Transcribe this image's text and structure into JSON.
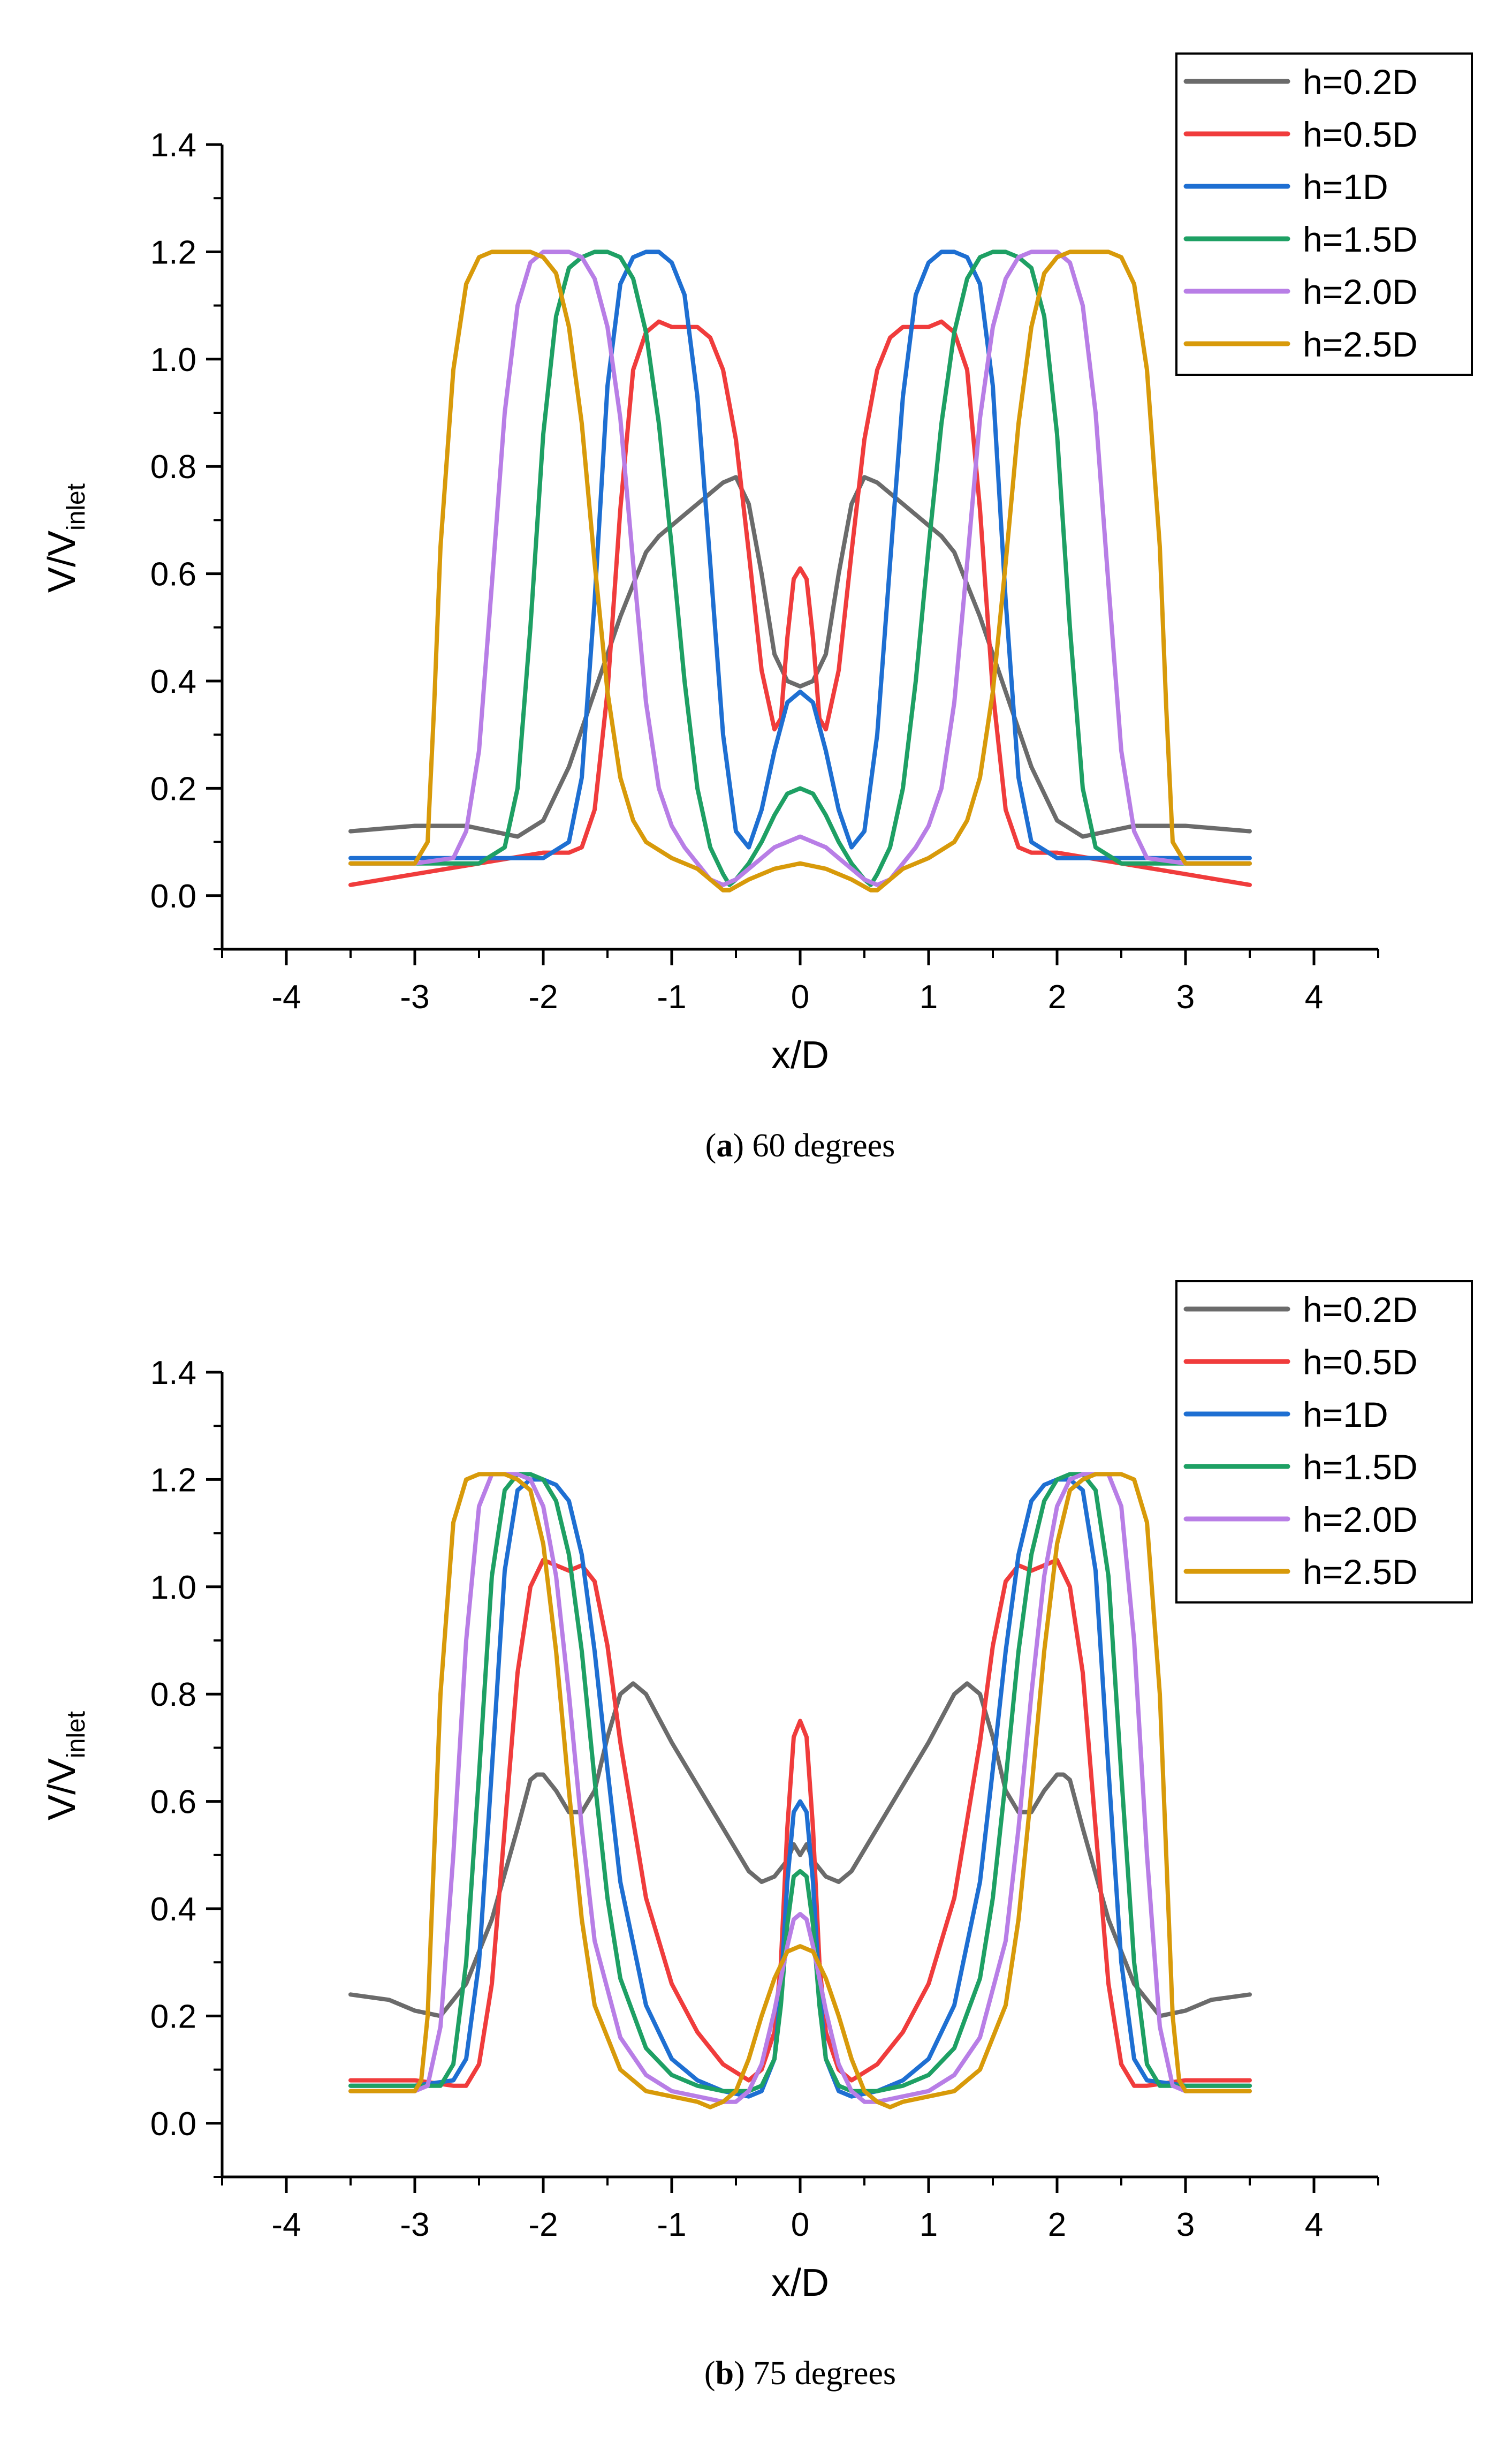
{
  "figure": {
    "series_colors": {
      "h=0.2D": "#6b6b6b",
      "h=0.5D": "#f03c3c",
      "h=1D": "#1e6fd2",
      "h=1.5D": "#1ea064",
      "h=2.0D": "#b87ee6",
      "h=2.5D": "#d89a0a"
    }
  },
  "chart_data": [
    {
      "type": "line",
      "panel_letter": "a",
      "caption": "60 degrees",
      "xlabel": "x/D",
      "ylabel_main": "V/V",
      "ylabel_sub": "inlet",
      "xlim": [
        -4.5,
        4.5
      ],
      "ylim": [
        -0.1,
        1.4
      ],
      "xticks": [
        -4,
        -3,
        -2,
        -1,
        0,
        1,
        2,
        3,
        4
      ],
      "yticks": [
        0.0,
        0.2,
        0.4,
        0.6,
        0.8,
        1.0,
        1.2,
        1.4
      ],
      "yticklabels": [
        "0.0",
        "0.2",
        "0.4",
        "0.6",
        "0.8",
        "1.0",
        "1.2",
        "1.4"
      ],
      "legend": "top-right",
      "series": [
        {
          "name": "h=0.2D",
          "color": "#6b6b6b",
          "x": [
            0,
            0.1,
            0.2,
            0.3,
            0.4,
            0.5,
            0.6,
            0.8,
            1.0,
            1.1,
            1.2,
            1.4,
            1.6,
            1.8,
            2.0,
            2.2,
            2.4,
            2.6,
            3.0,
            3.5
          ],
          "y": [
            0.39,
            0.4,
            0.45,
            0.6,
            0.73,
            0.78,
            0.77,
            0.73,
            0.69,
            0.67,
            0.64,
            0.52,
            0.38,
            0.24,
            0.14,
            0.11,
            0.12,
            0.13,
            0.13,
            0.12
          ]
        },
        {
          "name": "h=0.5D",
          "color": "#f03c3c",
          "x": [
            0,
            0.05,
            0.1,
            0.15,
            0.2,
            0.3,
            0.4,
            0.5,
            0.6,
            0.7,
            0.8,
            0.9,
            1.0,
            1.1,
            1.2,
            1.3,
            1.4,
            1.5,
            1.6,
            1.7,
            1.8,
            2.0,
            2.5,
            3.0,
            3.5
          ],
          "y": [
            0.61,
            0.59,
            0.48,
            0.33,
            0.31,
            0.42,
            0.64,
            0.85,
            0.98,
            1.04,
            1.06,
            1.06,
            1.06,
            1.07,
            1.05,
            0.98,
            0.72,
            0.38,
            0.16,
            0.09,
            0.08,
            0.08,
            0.06,
            0.04,
            0.02
          ]
        },
        {
          "name": "h=1D",
          "color": "#1e6fd2",
          "x": [
            0,
            0.1,
            0.2,
            0.3,
            0.4,
            0.5,
            0.6,
            0.7,
            0.8,
            0.9,
            1.0,
            1.1,
            1.2,
            1.3,
            1.4,
            1.5,
            1.6,
            1.7,
            1.8,
            2.0,
            2.5,
            3.0,
            3.5
          ],
          "y": [
            0.38,
            0.36,
            0.27,
            0.16,
            0.09,
            0.12,
            0.3,
            0.62,
            0.93,
            1.12,
            1.18,
            1.2,
            1.2,
            1.19,
            1.14,
            0.95,
            0.55,
            0.22,
            0.1,
            0.07,
            0.07,
            0.07,
            0.07
          ]
        },
        {
          "name": "h=1.5D",
          "color": "#1ea064",
          "x": [
            0,
            0.1,
            0.2,
            0.3,
            0.4,
            0.5,
            0.55,
            0.6,
            0.7,
            0.8,
            0.9,
            1.0,
            1.1,
            1.2,
            1.3,
            1.4,
            1.5,
            1.6,
            1.7,
            1.8,
            1.9,
            2.0,
            2.1,
            2.2,
            2.3,
            2.5,
            3.0,
            3.5
          ],
          "y": [
            0.2,
            0.19,
            0.15,
            0.1,
            0.06,
            0.03,
            0.02,
            0.04,
            0.09,
            0.2,
            0.4,
            0.65,
            0.88,
            1.05,
            1.15,
            1.19,
            1.2,
            1.2,
            1.19,
            1.17,
            1.08,
            0.86,
            0.5,
            0.2,
            0.09,
            0.06,
            0.06,
            0.06
          ]
        },
        {
          "name": "h=2.0D",
          "color": "#b87ee6",
          "x": [
            0,
            0.1,
            0.2,
            0.3,
            0.4,
            0.5,
            0.6,
            0.7,
            0.8,
            0.9,
            1.0,
            1.1,
            1.2,
            1.3,
            1.4,
            1.5,
            1.6,
            1.7,
            1.8,
            1.9,
            2.0,
            2.1,
            2.2,
            2.3,
            2.4,
            2.5,
            2.6,
            2.7,
            3.0,
            3.5
          ],
          "y": [
            0.11,
            0.1,
            0.09,
            0.07,
            0.05,
            0.03,
            0.02,
            0.03,
            0.06,
            0.09,
            0.13,
            0.2,
            0.36,
            0.62,
            0.89,
            1.06,
            1.15,
            1.19,
            1.2,
            1.2,
            1.2,
            1.18,
            1.1,
            0.9,
            0.58,
            0.27,
            0.12,
            0.07,
            0.06,
            0.06
          ]
        },
        {
          "name": "h=2.5D",
          "color": "#d89a0a",
          "x": [
            0,
            0.2,
            0.4,
            0.55,
            0.6,
            0.7,
            0.8,
            1.0,
            1.2,
            1.3,
            1.4,
            1.5,
            1.6,
            1.7,
            1.8,
            1.9,
            2.0,
            2.1,
            2.2,
            2.3,
            2.4,
            2.5,
            2.6,
            2.7,
            2.8,
            2.85,
            2.9,
            3.0,
            3.5
          ],
          "y": [
            0.06,
            0.05,
            0.03,
            0.01,
            0.01,
            0.03,
            0.05,
            0.07,
            0.1,
            0.14,
            0.22,
            0.38,
            0.62,
            0.88,
            1.06,
            1.16,
            1.19,
            1.2,
            1.2,
            1.2,
            1.2,
            1.19,
            1.14,
            0.98,
            0.65,
            0.35,
            0.1,
            0.06,
            0.06
          ]
        }
      ]
    },
    {
      "type": "line",
      "panel_letter": "b",
      "caption": "75 degrees",
      "xlabel": "x/D",
      "ylabel_main": "V/V",
      "ylabel_sub": "inlet",
      "xlim": [
        -4.5,
        4.5
      ],
      "ylim": [
        -0.1,
        1.4
      ],
      "xticks": [
        -4,
        -3,
        -2,
        -1,
        0,
        1,
        2,
        3,
        4
      ],
      "yticks": [
        0.0,
        0.2,
        0.4,
        0.6,
        0.8,
        1.0,
        1.2,
        1.4
      ],
      "yticklabels": [
        "0.0",
        "0.2",
        "0.4",
        "0.6",
        "0.8",
        "1.0",
        "1.2",
        "1.4"
      ],
      "legend": "top-right",
      "series": [
        {
          "name": "h=0.2D",
          "color": "#6b6b6b",
          "x": [
            0,
            0.05,
            0.1,
            0.2,
            0.3,
            0.4,
            0.6,
            0.8,
            1.0,
            1.2,
            1.3,
            1.4,
            1.5,
            1.6,
            1.7,
            1.8,
            1.9,
            2.0,
            2.05,
            2.1,
            2.2,
            2.4,
            2.6,
            2.8,
            3.0,
            3.2,
            3.5
          ],
          "y": [
            0.5,
            0.52,
            0.49,
            0.46,
            0.45,
            0.47,
            0.55,
            0.63,
            0.71,
            0.8,
            0.82,
            0.8,
            0.72,
            0.62,
            0.58,
            0.58,
            0.62,
            0.65,
            0.65,
            0.64,
            0.55,
            0.38,
            0.26,
            0.2,
            0.21,
            0.23,
            0.24
          ]
        },
        {
          "name": "h=0.5D",
          "color": "#f03c3c",
          "x": [
            0,
            0.05,
            0.1,
            0.15,
            0.2,
            0.3,
            0.4,
            0.6,
            0.8,
            1.0,
            1.2,
            1.4,
            1.5,
            1.6,
            1.7,
            1.8,
            1.9,
            2.0,
            2.1,
            2.2,
            2.3,
            2.4,
            2.5,
            2.6,
            2.7,
            3.0,
            3.5
          ],
          "y": [
            0.75,
            0.72,
            0.55,
            0.3,
            0.17,
            0.1,
            0.08,
            0.11,
            0.17,
            0.26,
            0.42,
            0.71,
            0.89,
            1.01,
            1.04,
            1.03,
            1.04,
            1.05,
            1.0,
            0.84,
            0.55,
            0.26,
            0.11,
            0.07,
            0.07,
            0.08,
            0.08
          ]
        },
        {
          "name": "h=1D",
          "color": "#1e6fd2",
          "x": [
            0,
            0.05,
            0.1,
            0.15,
            0.2,
            0.3,
            0.4,
            0.6,
            0.8,
            1.0,
            1.2,
            1.4,
            1.5,
            1.6,
            1.7,
            1.8,
            1.9,
            2.0,
            2.1,
            2.2,
            2.3,
            2.4,
            2.5,
            2.6,
            2.7,
            3.0,
            3.5
          ],
          "y": [
            0.6,
            0.58,
            0.45,
            0.25,
            0.12,
            0.06,
            0.05,
            0.06,
            0.08,
            0.12,
            0.22,
            0.45,
            0.66,
            0.88,
            1.06,
            1.16,
            1.19,
            1.2,
            1.2,
            1.18,
            1.03,
            0.66,
            0.3,
            0.12,
            0.08,
            0.07,
            0.07
          ]
        },
        {
          "name": "h=1.5D",
          "color": "#1ea064",
          "x": [
            0,
            0.05,
            0.1,
            0.15,
            0.2,
            0.3,
            0.4,
            0.6,
            0.8,
            1.0,
            1.2,
            1.4,
            1.5,
            1.6,
            1.7,
            1.8,
            1.9,
            2.0,
            2.1,
            2.2,
            2.3,
            2.4,
            2.5,
            2.6,
            2.7,
            2.8,
            3.0,
            3.5
          ],
          "y": [
            0.47,
            0.46,
            0.37,
            0.22,
            0.12,
            0.07,
            0.06,
            0.06,
            0.07,
            0.09,
            0.14,
            0.27,
            0.42,
            0.64,
            0.88,
            1.06,
            1.16,
            1.2,
            1.21,
            1.21,
            1.18,
            1.02,
            0.65,
            0.3,
            0.11,
            0.07,
            0.07,
            0.07
          ]
        },
        {
          "name": "h=2.0D",
          "color": "#b87ee6",
          "x": [
            0,
            0.05,
            0.1,
            0.2,
            0.3,
            0.4,
            0.5,
            0.6,
            0.8,
            1.0,
            1.2,
            1.4,
            1.6,
            1.7,
            1.8,
            1.9,
            2.0,
            2.1,
            2.2,
            2.3,
            2.4,
            2.5,
            2.6,
            2.7,
            2.8,
            2.9,
            3.0,
            3.5
          ],
          "y": [
            0.39,
            0.38,
            0.33,
            0.21,
            0.11,
            0.06,
            0.04,
            0.04,
            0.05,
            0.06,
            0.09,
            0.16,
            0.34,
            0.55,
            0.8,
            1.02,
            1.15,
            1.2,
            1.21,
            1.21,
            1.21,
            1.15,
            0.9,
            0.5,
            0.18,
            0.07,
            0.06,
            0.06
          ]
        },
        {
          "name": "h=2.5D",
          "color": "#d89a0a",
          "x": [
            0,
            0.1,
            0.2,
            0.3,
            0.4,
            0.5,
            0.6,
            0.7,
            0.8,
            1.0,
            1.2,
            1.4,
            1.6,
            1.7,
            1.8,
            1.9,
            2.0,
            2.1,
            2.2,
            2.3,
            2.4,
            2.5,
            2.6,
            2.7,
            2.8,
            2.85,
            2.9,
            2.95,
            3.0,
            3.5
          ],
          "y": [
            0.33,
            0.32,
            0.27,
            0.2,
            0.12,
            0.06,
            0.04,
            0.03,
            0.04,
            0.05,
            0.06,
            0.1,
            0.22,
            0.38,
            0.62,
            0.88,
            1.08,
            1.18,
            1.2,
            1.21,
            1.21,
            1.21,
            1.2,
            1.12,
            0.8,
            0.5,
            0.2,
            0.08,
            0.06,
            0.06
          ]
        }
      ]
    }
  ]
}
